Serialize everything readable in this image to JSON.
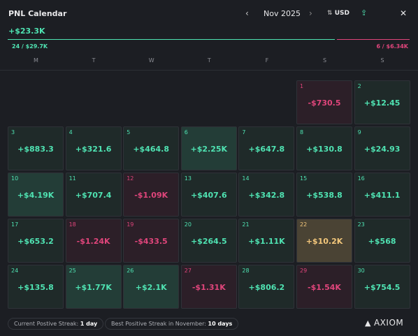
{
  "header": {
    "title": "PNL Calendar",
    "month": "Nov 2025",
    "currency": "USD"
  },
  "summary": {
    "total": "+$23.3K",
    "wins": "24 / $29.7K",
    "losses": "6 / $6.34K"
  },
  "weekdays": [
    "M",
    "T",
    "W",
    "T",
    "F",
    "S",
    "S"
  ],
  "days": [
    {
      "day": 1,
      "pnl": "-$730.5",
      "bg": "#2c1f28",
      "fg": "#e0457b"
    },
    {
      "day": 2,
      "pnl": "+$12.45",
      "bg": "#1f2a29",
      "fg": "#4fe3b2"
    },
    {
      "day": 3,
      "pnl": "+$883.3",
      "bg": "#1f2a29",
      "fg": "#4fe3b2"
    },
    {
      "day": 4,
      "pnl": "+$321.6",
      "bg": "#1f2a29",
      "fg": "#4fe3b2"
    },
    {
      "day": 5,
      "pnl": "+$464.8",
      "bg": "#1f2a29",
      "fg": "#4fe3b2"
    },
    {
      "day": 6,
      "pnl": "+$2.25K",
      "bg": "#233d37",
      "fg": "#4fe3b2"
    },
    {
      "day": 7,
      "pnl": "+$647.8",
      "bg": "#1f2a29",
      "fg": "#4fe3b2"
    },
    {
      "day": 8,
      "pnl": "+$130.8",
      "bg": "#1f2a29",
      "fg": "#4fe3b2"
    },
    {
      "day": 9,
      "pnl": "+$24.93",
      "bg": "#1f2a29",
      "fg": "#4fe3b2"
    },
    {
      "day": 10,
      "pnl": "+$4.19K",
      "bg": "#233d37",
      "fg": "#4fe3b2"
    },
    {
      "day": 11,
      "pnl": "+$707.4",
      "bg": "#1f2a29",
      "fg": "#4fe3b2"
    },
    {
      "day": 12,
      "pnl": "-$1.09K",
      "bg": "#2c1f28",
      "fg": "#e0457b"
    },
    {
      "day": 13,
      "pnl": "+$407.6",
      "bg": "#1f2a29",
      "fg": "#4fe3b2"
    },
    {
      "day": 14,
      "pnl": "+$342.8",
      "bg": "#1f2a29",
      "fg": "#4fe3b2"
    },
    {
      "day": 15,
      "pnl": "+$538.8",
      "bg": "#1f2a29",
      "fg": "#4fe3b2"
    },
    {
      "day": 16,
      "pnl": "+$411.1",
      "bg": "#1f2a29",
      "fg": "#4fe3b2"
    },
    {
      "day": 17,
      "pnl": "+$653.2",
      "bg": "#1f2a29",
      "fg": "#4fe3b2"
    },
    {
      "day": 18,
      "pnl": "-$1.24K",
      "bg": "#2c1f28",
      "fg": "#e0457b"
    },
    {
      "day": 19,
      "pnl": "-$433.5",
      "bg": "#2c1f28",
      "fg": "#e0457b"
    },
    {
      "day": 20,
      "pnl": "+$264.5",
      "bg": "#1f2a29",
      "fg": "#4fe3b2"
    },
    {
      "day": 21,
      "pnl": "+$1.11K",
      "bg": "#1f2a29",
      "fg": "#4fe3b2"
    },
    {
      "day": 22,
      "pnl": "+$10.2K",
      "bg": "#4a4334",
      "fg": "#f3c77b"
    },
    {
      "day": 23,
      "pnl": "+$568",
      "bg": "#1f2a29",
      "fg": "#4fe3b2"
    },
    {
      "day": 24,
      "pnl": "+$135.8",
      "bg": "#1f2a29",
      "fg": "#4fe3b2"
    },
    {
      "day": 25,
      "pnl": "+$1.77K",
      "bg": "#233d37",
      "fg": "#4fe3b2"
    },
    {
      "day": 26,
      "pnl": "+$2.1K",
      "bg": "#233d37",
      "fg": "#4fe3b2"
    },
    {
      "day": 27,
      "pnl": "-$1.31K",
      "bg": "#2c1f28",
      "fg": "#e0457b"
    },
    {
      "day": 28,
      "pnl": "+$806.2",
      "bg": "#1f2a29",
      "fg": "#4fe3b2"
    },
    {
      "day": 29,
      "pnl": "-$1.54K",
      "bg": "#2c1f28",
      "fg": "#e0457b"
    },
    {
      "day": 30,
      "pnl": "+$754.5",
      "bg": "#1f2a29",
      "fg": "#4fe3b2"
    }
  ],
  "footer": {
    "current_label": "Current Postive Streak:",
    "current_value": "1 day",
    "best_label": "Best Positive Streak in November:",
    "best_value": "10 days",
    "brand": "AXIOM"
  }
}
